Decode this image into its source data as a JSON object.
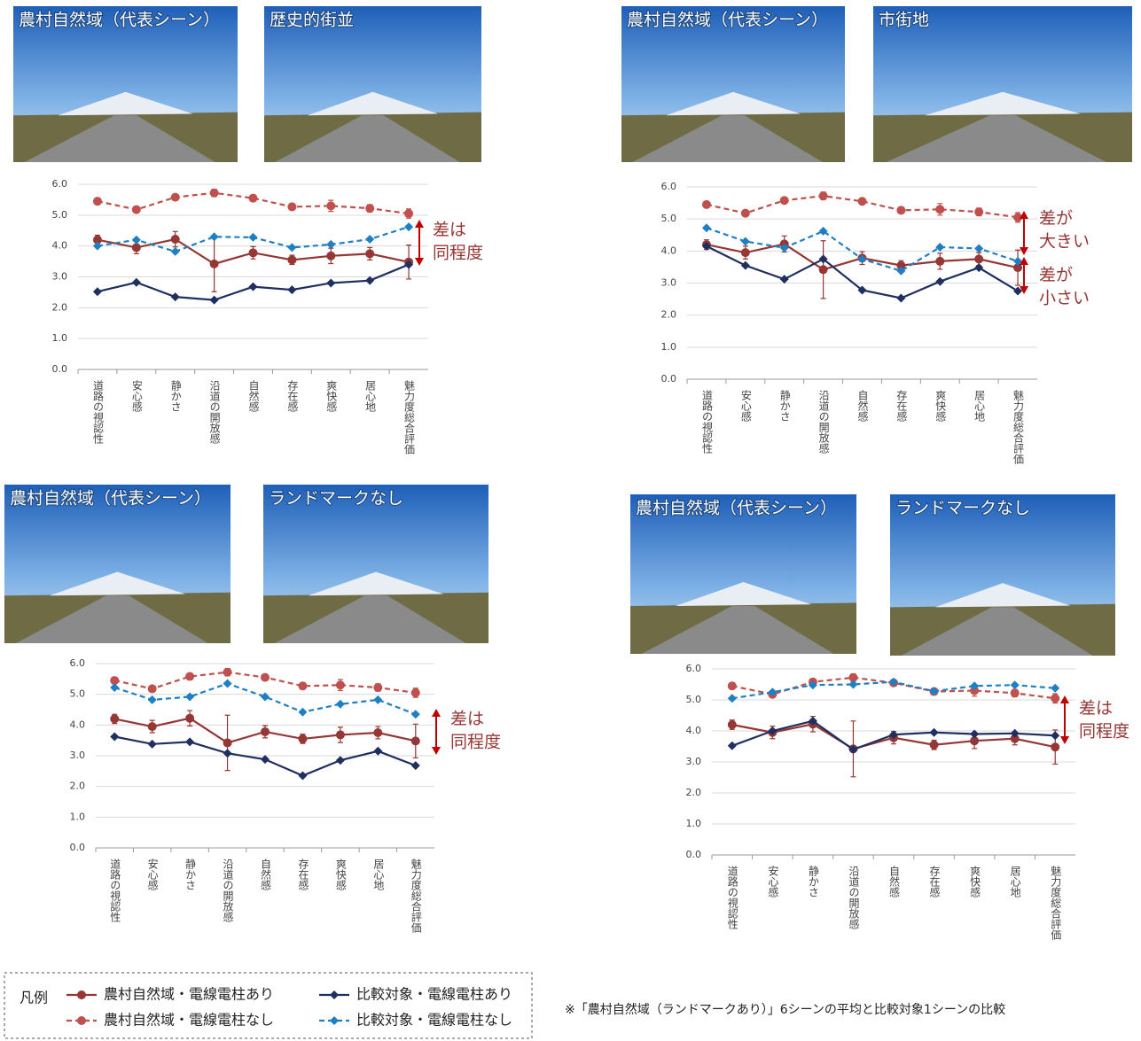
{
  "chart_data": [
    {
      "type": "line",
      "photos": [
        "農村自然域（代表シーン）",
        "歴史的街並"
      ],
      "categories": [
        "道路の視認性",
        "安心感",
        "静かさ",
        "沿道の開放感",
        "自然感",
        "存在感",
        "爽快感",
        "居心地",
        "魅力度総合評価"
      ],
      "ylim": [
        0,
        6
      ],
      "yticks": [
        {
          "value": 0,
          "label": "0.0"
        },
        {
          "value": 1,
          "label": "1.0"
        },
        {
          "value": 2,
          "label": "2.0"
        },
        {
          "value": 3,
          "label": "3.0"
        },
        {
          "value": 4,
          "label": "4.0"
        },
        {
          "value": 5,
          "label": "5.0"
        },
        {
          "value": 6,
          "label": "6.0"
        }
      ],
      "grid": true,
      "series": [
        {
          "name": "農村自然域・電線電柱あり",
          "color": "#953735",
          "dashed": false,
          "marker": "circle",
          "values": [
            4.2,
            3.95,
            4.22,
            3.42,
            3.78,
            3.55,
            3.68,
            3.75,
            3.48
          ],
          "errors": [
            0.15,
            0.2,
            0.25,
            0.9,
            0.2,
            0.15,
            0.25,
            0.2,
            0.55
          ]
        },
        {
          "name": "農村自然域・電線電柱なし",
          "color": "#c0504d",
          "dashed": true,
          "marker": "circle",
          "values": [
            5.45,
            5.18,
            5.58,
            5.72,
            5.55,
            5.27,
            5.3,
            5.22,
            5.05
          ],
          "errors": [
            0.1,
            0.08,
            0.08,
            0.12,
            0.08,
            0.1,
            0.18,
            0.12,
            0.15
          ]
        },
        {
          "name": "比較対象・電線電柱あり",
          "color": "#1f2f5f",
          "dashed": false,
          "marker": "diamond",
          "values": [
            2.52,
            2.82,
            2.35,
            2.25,
            2.68,
            2.58,
            2.8,
            2.88,
            3.4
          ]
        },
        {
          "name": "比較対象・電線電柱なし",
          "color": "#1f7fc4",
          "dashed": true,
          "marker": "diamond",
          "values": [
            4.0,
            4.2,
            3.82,
            4.3,
            4.28,
            3.95,
            4.05,
            4.22,
            4.62
          ]
        }
      ],
      "annotations": [
        [
          "差は",
          "同程度"
        ]
      ]
    },
    {
      "type": "line",
      "photos": [
        "農村自然域（代表シーン）",
        "市街地"
      ],
      "categories": [
        "道路の視認性",
        "安心感",
        "静かさ",
        "沿道の開放感",
        "自然感",
        "存在感",
        "爽快感",
        "居心地",
        "魅力度総合評価"
      ],
      "ylim": [
        0,
        6
      ],
      "yticks": [
        {
          "value": 0,
          "label": "0.0"
        },
        {
          "value": 1,
          "label": "1.0"
        },
        {
          "value": 2,
          "label": "2.0"
        },
        {
          "value": 3,
          "label": "3.0"
        },
        {
          "value": 4,
          "label": "4.0"
        },
        {
          "value": 5,
          "label": "5.0"
        },
        {
          "value": 6,
          "label": "6.0"
        }
      ],
      "grid": true,
      "series": [
        {
          "name": "農村自然域・電線電柱あり",
          "color": "#953735",
          "dashed": false,
          "marker": "circle",
          "values": [
            4.2,
            3.95,
            4.22,
            3.42,
            3.78,
            3.55,
            3.68,
            3.75,
            3.48
          ],
          "errors": [
            0.15,
            0.2,
            0.25,
            0.9,
            0.2,
            0.15,
            0.25,
            0.2,
            0.55
          ]
        },
        {
          "name": "農村自然域・電線電柱なし",
          "color": "#c0504d",
          "dashed": true,
          "marker": "circle",
          "values": [
            5.45,
            5.18,
            5.58,
            5.72,
            5.55,
            5.27,
            5.3,
            5.22,
            5.05
          ],
          "errors": [
            0.1,
            0.08,
            0.08,
            0.12,
            0.08,
            0.1,
            0.18,
            0.12,
            0.15
          ]
        },
        {
          "name": "比較対象・電線電柱あり",
          "color": "#1f2f5f",
          "dashed": false,
          "marker": "diamond",
          "values": [
            4.15,
            3.55,
            3.12,
            3.75,
            2.78,
            2.53,
            3.05,
            3.48,
            2.75
          ]
        },
        {
          "name": "比較対象・電線電柱なし",
          "color": "#1f7fc4",
          "dashed": true,
          "marker": "diamond",
          "values": [
            4.72,
            4.3,
            4.1,
            4.62,
            3.75,
            3.38,
            4.12,
            4.08,
            3.68
          ]
        }
      ],
      "annotations": [
        [
          "差が",
          "大きい"
        ],
        [
          "差が",
          "小さい"
        ]
      ]
    },
    {
      "type": "line",
      "photos": [
        "農村自然域（代表シーン）",
        "ランドマークなし"
      ],
      "categories": [
        "道路の視認性",
        "安心感",
        "静かさ",
        "沿道の開放感",
        "自然感",
        "存在感",
        "爽快感",
        "居心地",
        "魅力度総合評価"
      ],
      "ylim": [
        0,
        6
      ],
      "yticks": [
        {
          "value": 0,
          "label": "0.0"
        },
        {
          "value": 1,
          "label": "1.0"
        },
        {
          "value": 2,
          "label": "2.0"
        },
        {
          "value": 3,
          "label": "3.0"
        },
        {
          "value": 4,
          "label": "4.0"
        },
        {
          "value": 5,
          "label": "5.0"
        },
        {
          "value": 6,
          "label": "6.0"
        }
      ],
      "grid": true,
      "series": [
        {
          "name": "農村自然域・電線電柱あり",
          "color": "#953735",
          "dashed": false,
          "marker": "circle",
          "values": [
            4.2,
            3.95,
            4.22,
            3.42,
            3.78,
            3.55,
            3.68,
            3.75,
            3.48
          ],
          "errors": [
            0.15,
            0.2,
            0.25,
            0.9,
            0.2,
            0.15,
            0.25,
            0.2,
            0.55
          ]
        },
        {
          "name": "農村自然域・電線電柱なし",
          "color": "#c0504d",
          "dashed": true,
          "marker": "circle",
          "values": [
            5.45,
            5.18,
            5.58,
            5.72,
            5.55,
            5.27,
            5.3,
            5.22,
            5.05
          ],
          "errors": [
            0.1,
            0.08,
            0.08,
            0.12,
            0.08,
            0.1,
            0.18,
            0.12,
            0.15
          ]
        },
        {
          "name": "比較対象・電線電柱あり",
          "color": "#1f2f5f",
          "dashed": false,
          "marker": "diamond",
          "values": [
            3.62,
            3.38,
            3.45,
            3.08,
            2.88,
            2.35,
            2.85,
            3.15,
            2.68
          ]
        },
        {
          "name": "比較対象・電線電柱なし",
          "color": "#1f7fc4",
          "dashed": true,
          "marker": "diamond",
          "values": [
            5.22,
            4.82,
            4.92,
            5.35,
            4.92,
            4.42,
            4.68,
            4.82,
            4.35
          ]
        }
      ],
      "annotations": [
        [
          "差は",
          "同程度"
        ]
      ]
    },
    {
      "type": "line",
      "photos": [
        "農村自然域（代表シーン）",
        "ランドマークなし"
      ],
      "categories": [
        "道路の視認性",
        "安心感",
        "静かさ",
        "沿道の開放感",
        "自然感",
        "存在感",
        "爽快感",
        "居心地",
        "魅力度総合評価"
      ],
      "ylim": [
        0,
        6
      ],
      "yticks": [
        {
          "value": 0,
          "label": "0.0"
        },
        {
          "value": 1,
          "label": "1.0"
        },
        {
          "value": 2,
          "label": "2.0"
        },
        {
          "value": 3,
          "label": "3.0"
        },
        {
          "value": 4,
          "label": "4.0"
        },
        {
          "value": 5,
          "label": "5.0"
        },
        {
          "value": 6,
          "label": "6.0"
        }
      ],
      "grid": true,
      "series": [
        {
          "name": "農村自然域・電線電柱あり",
          "color": "#953735",
          "dashed": false,
          "marker": "circle",
          "values": [
            4.2,
            3.95,
            4.22,
            3.42,
            3.78,
            3.55,
            3.68,
            3.75,
            3.48
          ],
          "errors": [
            0.15,
            0.2,
            0.25,
            0.9,
            0.2,
            0.15,
            0.25,
            0.2,
            0.55
          ]
        },
        {
          "name": "農村自然域・電線電柱なし",
          "color": "#c0504d",
          "dashed": true,
          "marker": "circle",
          "values": [
            5.45,
            5.18,
            5.58,
            5.72,
            5.55,
            5.27,
            5.3,
            5.22,
            5.05
          ],
          "errors": [
            0.1,
            0.08,
            0.08,
            0.12,
            0.08,
            0.1,
            0.18,
            0.12,
            0.15
          ]
        },
        {
          "name": "比較対象・電線電柱あり",
          "color": "#1f2f5f",
          "dashed": false,
          "marker": "diamond",
          "values": [
            3.52,
            4.0,
            4.32,
            3.4,
            3.88,
            3.95,
            3.9,
            3.92,
            3.85
          ]
        },
        {
          "name": "比較対象・電線電柱なし",
          "color": "#1f7fc4",
          "dashed": true,
          "marker": "diamond",
          "values": [
            5.05,
            5.25,
            5.48,
            5.5,
            5.58,
            5.28,
            5.45,
            5.48,
            5.38
          ]
        }
      ],
      "annotations": [
        [
          "差は",
          "同程度"
        ]
      ]
    }
  ],
  "legend_title": "凡例",
  "note": "※「農村自然域（ランドマークあり）」6シーンの平均と比較対象1シーンの比較"
}
